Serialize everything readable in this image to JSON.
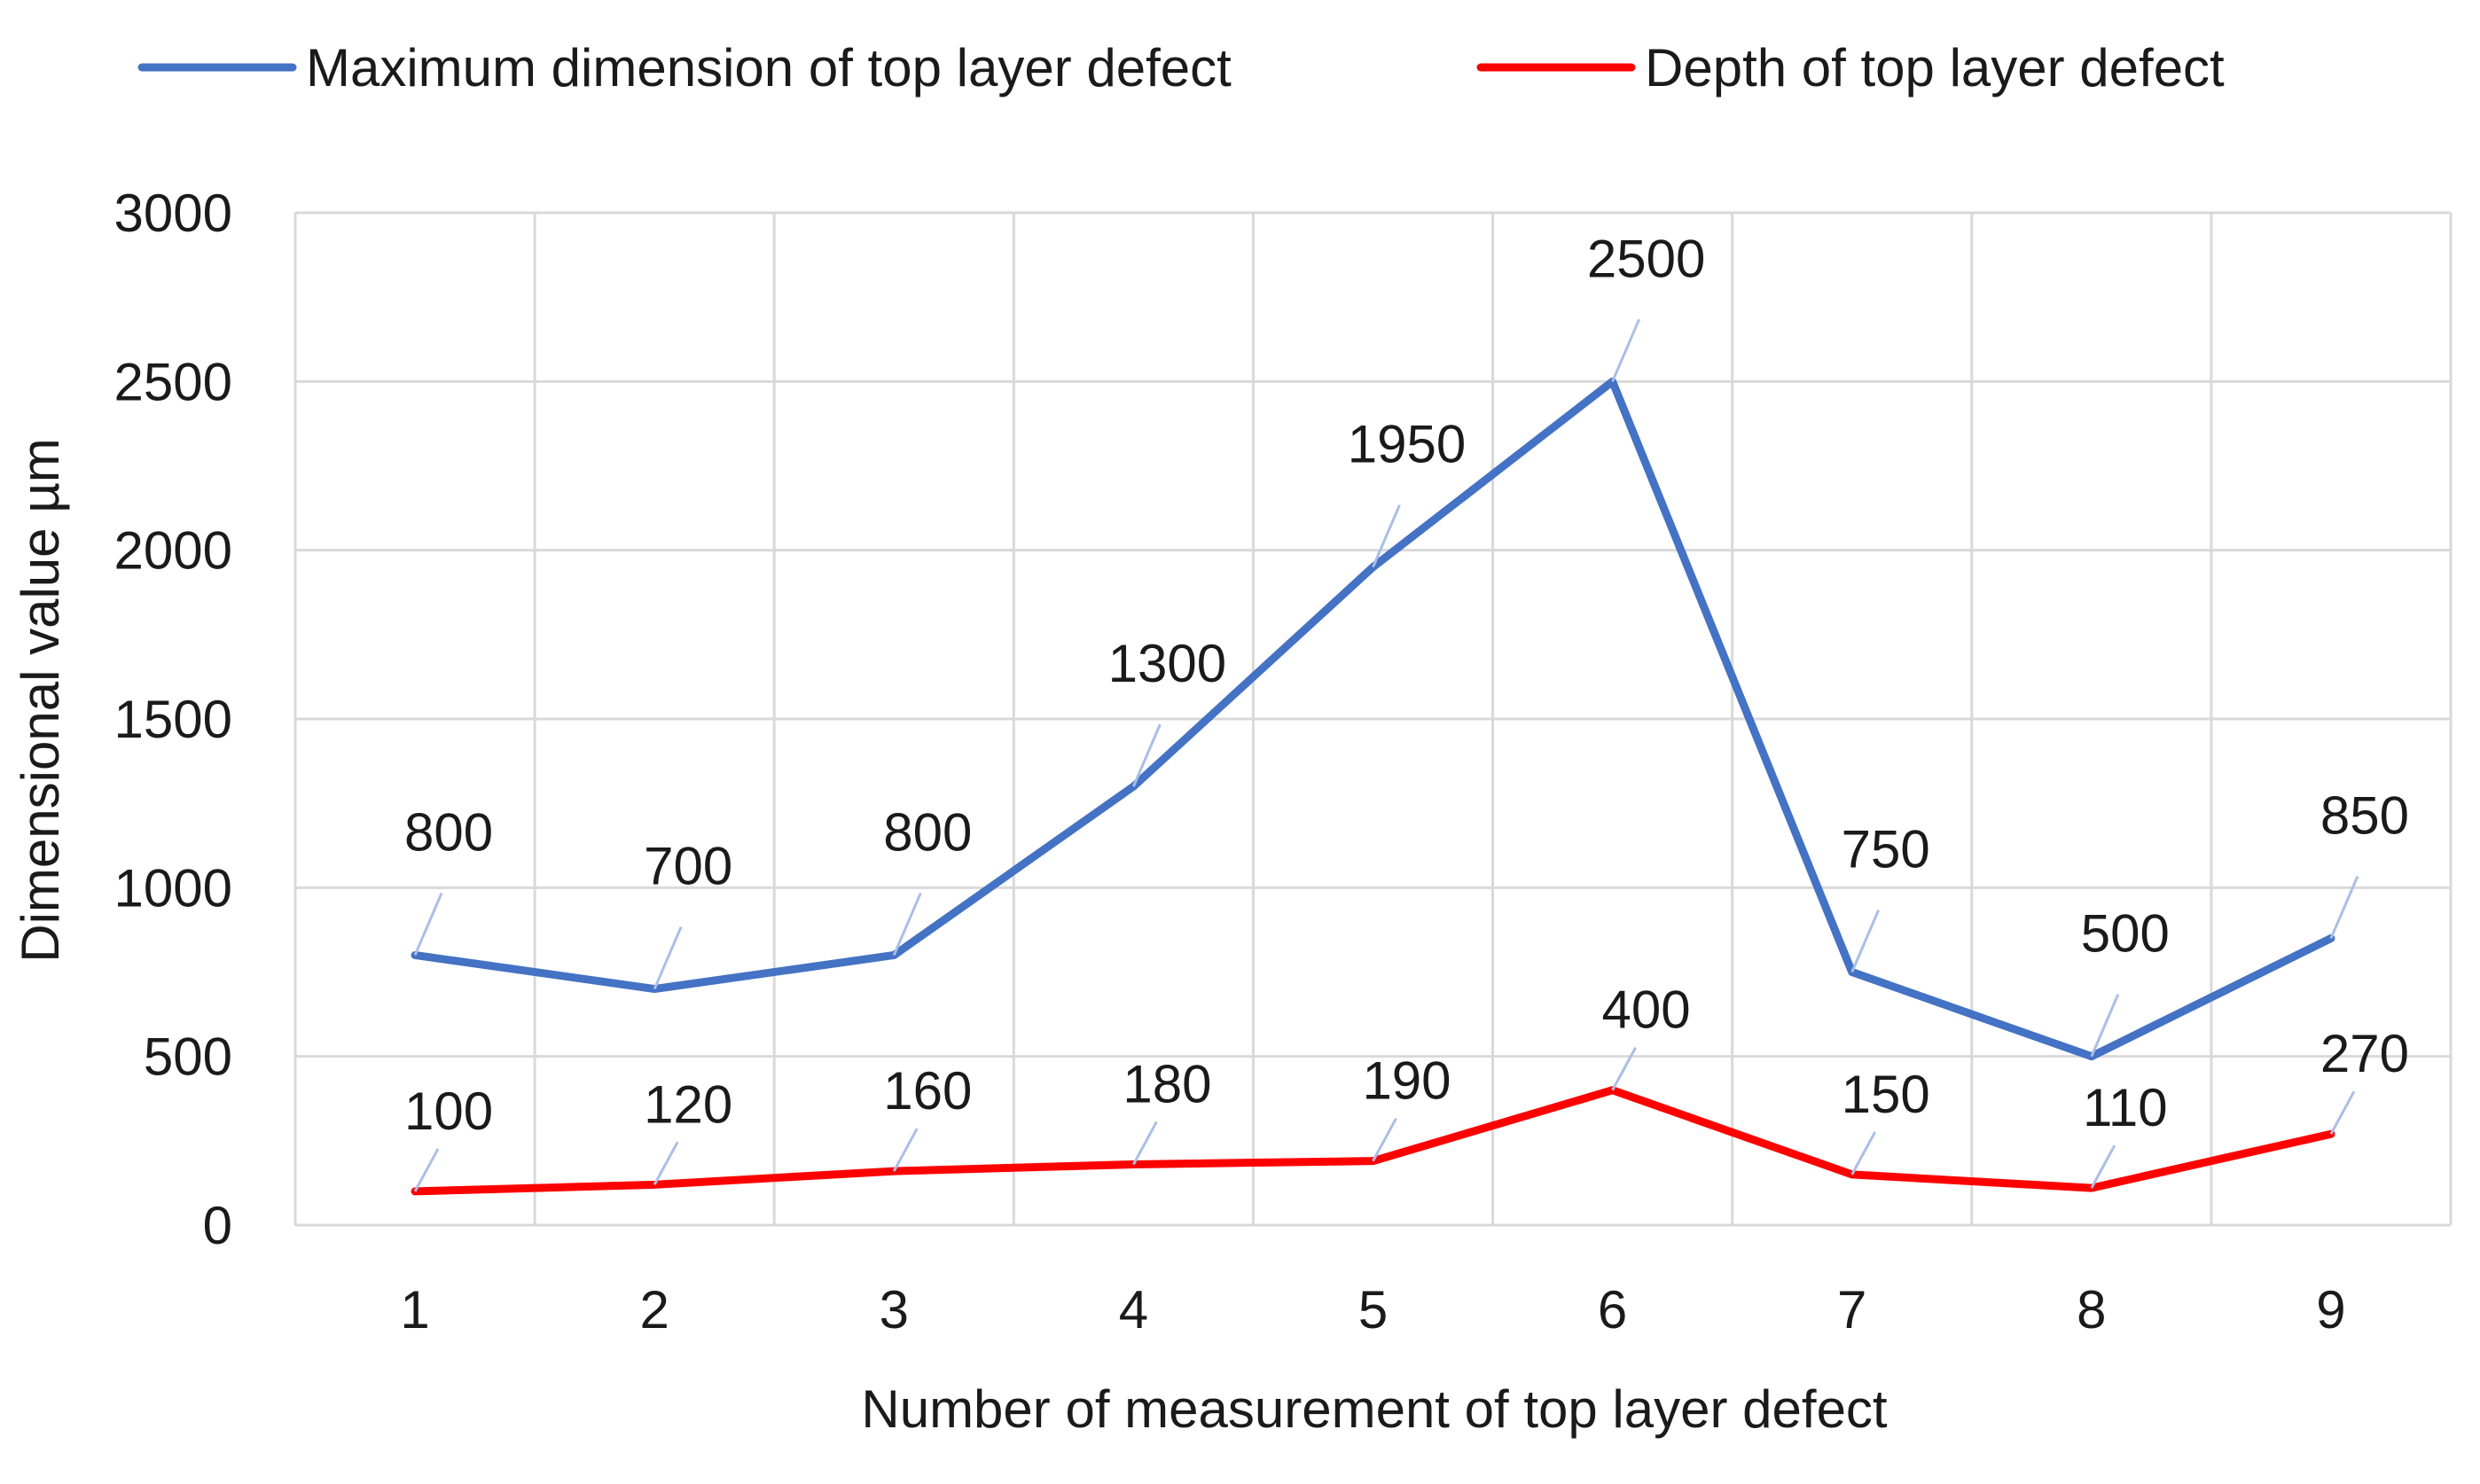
{
  "chart_data": {
    "type": "line",
    "categories": [
      "1",
      "2",
      "3",
      "4",
      "5",
      "6",
      "7",
      "8",
      "9"
    ],
    "series": [
      {
        "name": "Maximum dimension of top layer defect",
        "values": [
          800,
          700,
          800,
          1300,
          1950,
          2500,
          750,
          500,
          850
        ],
        "color": "#4472c4"
      },
      {
        "name": "Depth of top layer defect",
        "values": [
          100,
          120,
          160,
          180,
          190,
          400,
          150,
          110,
          270
        ],
        "color": "#ff0000"
      }
    ],
    "xlabel": "Number of measurement of top layer defect",
    "ylabel": "Dimensional value µm",
    "ylim": [
      0,
      3000
    ],
    "yticks": [
      "0",
      "500",
      "1000",
      "1500",
      "2000",
      "2500",
      "3000"
    ],
    "grid": true,
    "legend_position": "top",
    "data_labels": true
  }
}
